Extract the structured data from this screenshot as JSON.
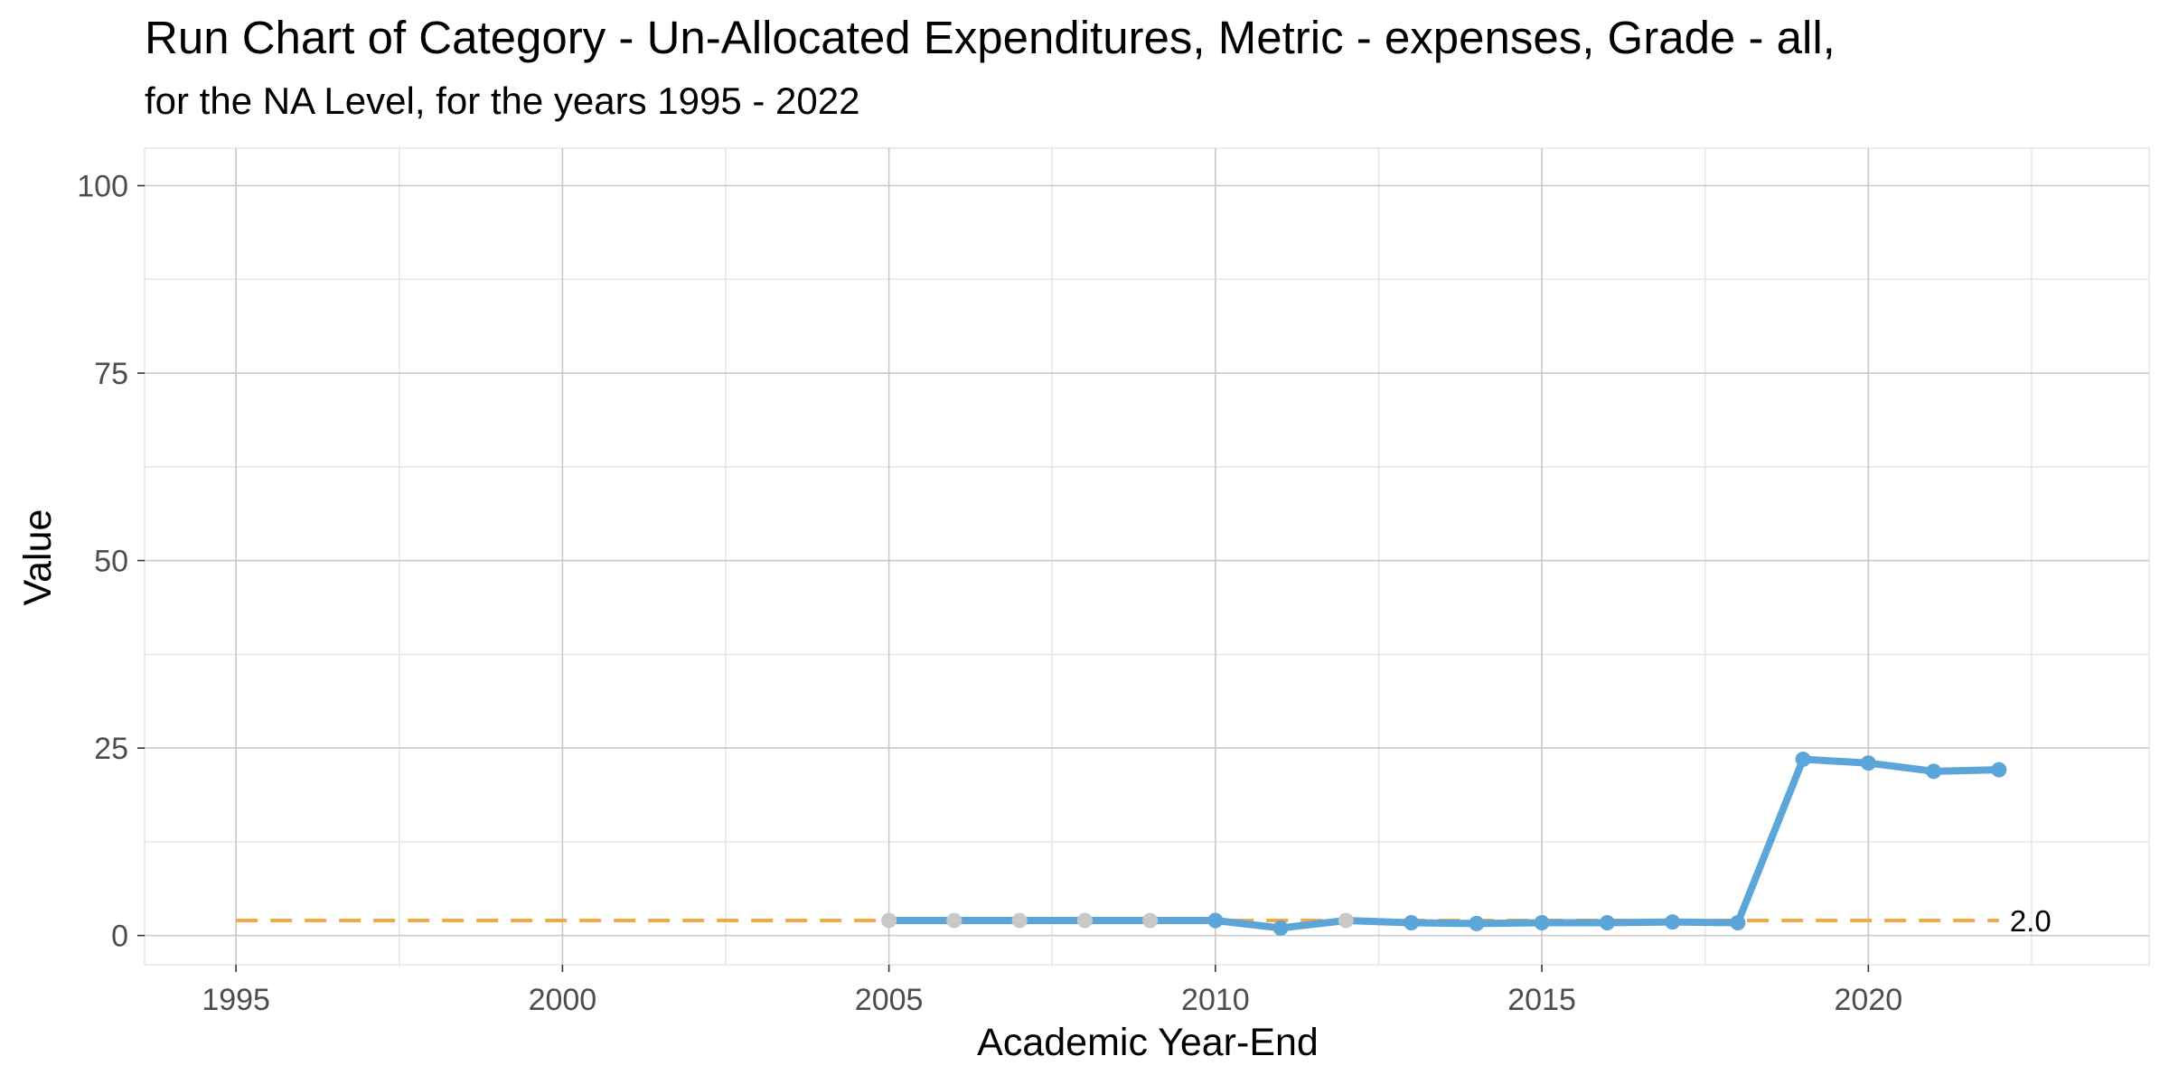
{
  "chart_data": {
    "type": "line",
    "title": "Run Chart of Category -  Un-Allocated Expenditures, Metric - expenses, Grade - all,",
    "subtitle": "for the NA Level, for the years 1995 - 2022",
    "xlabel": "Academic Year-End",
    "ylabel": "Value",
    "xlim": [
      1993.6,
      2024.3
    ],
    "ylim": [
      -3.9,
      105
    ],
    "xticks": [
      1995,
      2000,
      2005,
      2010,
      2015,
      2020
    ],
    "yticks": [
      0,
      25,
      50,
      75,
      100
    ],
    "grid": true,
    "series": [
      {
        "x": [
          2005,
          2006,
          2007,
          2008,
          2009,
          2010,
          2011,
          2012,
          2013,
          2014,
          2015,
          2016,
          2017,
          2018,
          2019,
          2020,
          2021,
          2022
        ],
        "values": [
          2.0,
          2.0,
          2.0,
          2.0,
          2.0,
          2.0,
          1.0,
          2.0,
          1.7,
          1.6,
          1.7,
          1.7,
          1.8,
          1.7,
          23.5,
          23.0,
          21.9,
          22.1
        ],
        "point_status": [
          "missing",
          "missing",
          "missing",
          "missing",
          "missing",
          "observed",
          "observed",
          "missing",
          "observed",
          "observed",
          "observed",
          "observed",
          "observed",
          "observed",
          "observed",
          "observed",
          "observed",
          "observed"
        ]
      }
    ],
    "reference_line": {
      "value": 2.0,
      "x": [
        1995,
        2022
      ],
      "label": "2.0"
    },
    "colors": {
      "line": "#5ca5d9",
      "missing_point": "#c8c8c8",
      "reference": "#f5a742",
      "grid_major": "#c8c8c8",
      "grid_minor": "#e6e6e6"
    }
  }
}
